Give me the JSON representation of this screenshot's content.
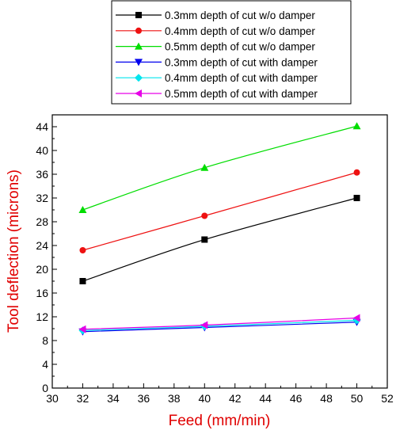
{
  "chart_data": {
    "type": "line",
    "xlabel": "Feed (mm/min)",
    "ylabel": "Tool deflection (microns)",
    "xlim": [
      30,
      52
    ],
    "ylim": [
      0,
      46
    ],
    "x_ticks": [
      30,
      32,
      34,
      36,
      38,
      40,
      42,
      44,
      46,
      48,
      50,
      52
    ],
    "y_ticks": [
      0,
      4,
      8,
      12,
      16,
      20,
      24,
      28,
      32,
      36,
      40,
      44
    ],
    "x": [
      32,
      40,
      50
    ],
    "axis_label_color": "#e00000",
    "legend_position": "top-right",
    "series": [
      {
        "name": "0.3mm depth of cut w/o damper",
        "values": [
          18.0,
          25.0,
          32.0
        ],
        "color": "#000000",
        "marker": "square"
      },
      {
        "name": "0.4mm depth of cut w/o damper",
        "values": [
          23.2,
          29.0,
          36.3
        ],
        "color": "#ee1111",
        "marker": "circle"
      },
      {
        "name": "0.5mm depth of cut w/o damper",
        "values": [
          30.0,
          37.1,
          44.1
        ],
        "color": "#00dd00",
        "marker": "triangle-up"
      },
      {
        "name": "0.3mm depth of cut with damper",
        "values": [
          9.5,
          10.2,
          11.1
        ],
        "color": "#0000ee",
        "marker": "triangle-down"
      },
      {
        "name": "0.4mm depth of cut with damper",
        "values": [
          9.7,
          10.4,
          11.4
        ],
        "color": "#00e5ee",
        "marker": "diamond"
      },
      {
        "name": "0.5mm depth of cut with damper",
        "values": [
          9.9,
          10.6,
          11.8
        ],
        "color": "#e600e6",
        "marker": "triangle-left"
      }
    ]
  }
}
